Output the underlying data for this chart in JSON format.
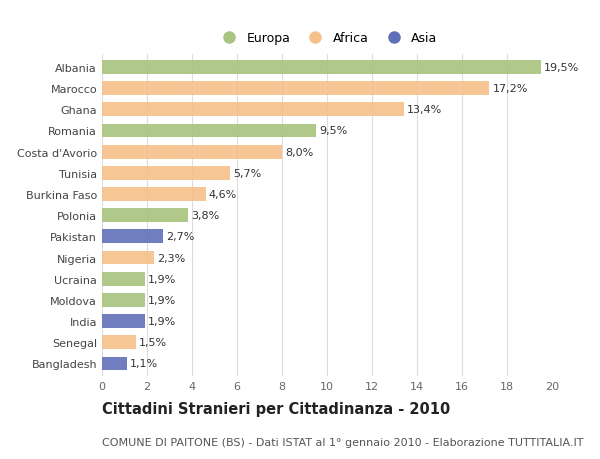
{
  "categories": [
    "Albania",
    "Marocco",
    "Ghana",
    "Romania",
    "Costa d'Avorio",
    "Tunisia",
    "Burkina Faso",
    "Polonia",
    "Pakistan",
    "Nigeria",
    "Ucraina",
    "Moldova",
    "India",
    "Senegal",
    "Bangladesh"
  ],
  "values": [
    19.5,
    17.2,
    13.4,
    9.5,
    8.0,
    5.7,
    4.6,
    3.8,
    2.7,
    2.3,
    1.9,
    1.9,
    1.9,
    1.5,
    1.1
  ],
  "labels": [
    "19,5%",
    "17,2%",
    "13,4%",
    "9,5%",
    "8,0%",
    "5,7%",
    "4,6%",
    "3,8%",
    "2,7%",
    "2,3%",
    "1,9%",
    "1,9%",
    "1,9%",
    "1,5%",
    "1,1%"
  ],
  "continents": [
    "Europa",
    "Africa",
    "Africa",
    "Europa",
    "Africa",
    "Africa",
    "Africa",
    "Europa",
    "Asia",
    "Africa",
    "Europa",
    "Europa",
    "Asia",
    "Africa",
    "Asia"
  ],
  "colors": {
    "Europa": "#a8c47e",
    "Africa": "#f5c08a",
    "Asia": "#6070b8"
  },
  "legend_labels": [
    "Europa",
    "Africa",
    "Asia"
  ],
  "legend_colors": [
    "#a8c47e",
    "#f5c08a",
    "#6070b8"
  ],
  "title": "Cittadini Stranieri per Cittadinanza - 2010",
  "subtitle": "COMUNE DI PAITONE (BS) - Dati ISTAT al 1° gennaio 2010 - Elaborazione TUTTITALIA.IT",
  "xlim": [
    0,
    20
  ],
  "xticks": [
    0,
    2,
    4,
    6,
    8,
    10,
    12,
    14,
    16,
    18,
    20
  ],
  "fig_bg_color": "#ffffff",
  "plot_bg_color": "#ffffff",
  "grid_color": "#dddddd",
  "bar_height": 0.65,
  "title_fontsize": 10.5,
  "subtitle_fontsize": 8,
  "label_fontsize": 8,
  "tick_fontsize": 8,
  "legend_fontsize": 9
}
